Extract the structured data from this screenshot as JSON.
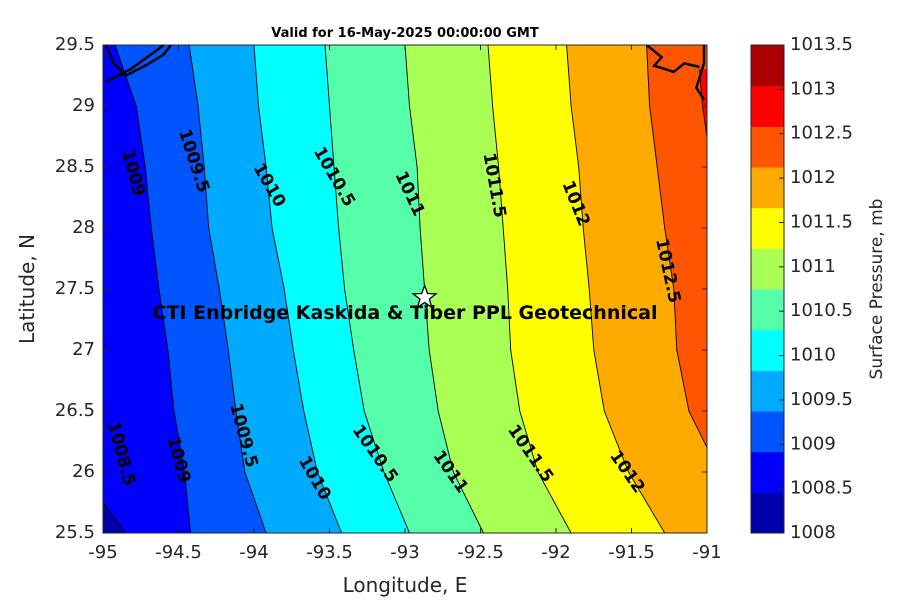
{
  "chart_data": {
    "type": "contour",
    "title": "Valid for 16-May-2025 00:00:00 GMT",
    "xlabel": "Longitude, E",
    "ylabel": "Latitude, N",
    "xlim": [
      -95,
      -91
    ],
    "ylim": [
      25.5,
      29.5
    ],
    "xticks": [
      "-95",
      "-94.5",
      "-94",
      "-93.5",
      "-93",
      "-92.5",
      "-92",
      "-91.5",
      "-91"
    ],
    "yticks": [
      "25.5",
      "26",
      "26.5",
      "27",
      "27.5",
      "28",
      "28.5",
      "29",
      "29.5"
    ],
    "colorbar": {
      "label": "Surface Pressure, mb",
      "levels": [
        1008,
        1008.5,
        1009,
        1009.5,
        1010,
        1010.5,
        1011,
        1011.5,
        1012,
        1012.5,
        1013,
        1013.5
      ],
      "tick_labels": [
        "1008",
        "1008.5",
        "1009",
        "1009.5",
        "1010",
        "1010.5",
        "1011",
        "1011.5",
        "1012",
        "1012.5",
        "1013",
        "1013.5"
      ],
      "colors": [
        "#0000aa",
        "#0000ff",
        "#0055ff",
        "#00aaff",
        "#00ffff",
        "#55ffaa",
        "#aaff55",
        "#ffff00",
        "#ffaa00",
        "#ff5500",
        "#ff0000",
        "#aa0000"
      ]
    },
    "contours": [
      {
        "level": 1008.5,
        "label": "1008.5",
        "points": [
          [
            -95,
            25.75
          ],
          [
            -94.85,
            25.5
          ]
        ]
      },
      {
        "level": 1009,
        "label": "1009",
        "points": [
          [
            -94.92,
            29.5
          ],
          [
            -94.78,
            29.0
          ],
          [
            -94.72,
            28.5
          ],
          [
            -94.68,
            28.0
          ],
          [
            -94.63,
            27.5
          ],
          [
            -94.57,
            27.0
          ],
          [
            -94.53,
            26.5
          ],
          [
            -94.46,
            26.0
          ],
          [
            -94.42,
            25.5
          ]
        ]
      },
      {
        "level": 1009.5,
        "label": "1009.5",
        "points": [
          [
            -94.43,
            29.5
          ],
          [
            -94.37,
            29.0
          ],
          [
            -94.33,
            28.5
          ],
          [
            -94.3,
            28.0
          ],
          [
            -94.23,
            27.5
          ],
          [
            -94.17,
            27.0
          ],
          [
            -94.12,
            26.5
          ],
          [
            -94.06,
            26.0
          ],
          [
            -93.92,
            25.5
          ]
        ]
      },
      {
        "level": 1010,
        "label": "1010",
        "points": [
          [
            -94.0,
            29.5
          ],
          [
            -93.97,
            29.0
          ],
          [
            -93.92,
            28.5
          ],
          [
            -93.88,
            28.0
          ],
          [
            -93.8,
            27.5
          ],
          [
            -93.74,
            27.0
          ],
          [
            -93.67,
            26.5
          ],
          [
            -93.58,
            26.0
          ],
          [
            -93.42,
            25.5
          ]
        ]
      },
      {
        "level": 1010.5,
        "label": "1010.5",
        "points": [
          [
            -93.53,
            29.5
          ],
          [
            -93.5,
            29.0
          ],
          [
            -93.47,
            28.5
          ],
          [
            -93.44,
            28.0
          ],
          [
            -93.4,
            27.5
          ],
          [
            -93.34,
            27.0
          ],
          [
            -93.27,
            26.5
          ],
          [
            -93.14,
            26.0
          ],
          [
            -92.97,
            25.5
          ]
        ]
      },
      {
        "level": 1011,
        "label": "1011",
        "points": [
          [
            -93.0,
            29.5
          ],
          [
            -92.97,
            29.0
          ],
          [
            -92.92,
            28.5
          ],
          [
            -92.9,
            28.0
          ],
          [
            -92.87,
            27.5
          ],
          [
            -92.84,
            27.0
          ],
          [
            -92.78,
            26.5
          ],
          [
            -92.68,
            26.0
          ],
          [
            -92.48,
            25.5
          ]
        ]
      },
      {
        "level": 1011.5,
        "label": "1011.5",
        "points": [
          [
            -92.45,
            29.5
          ],
          [
            -92.42,
            29.0
          ],
          [
            -92.38,
            28.5
          ],
          [
            -92.35,
            28.0
          ],
          [
            -92.32,
            27.5
          ],
          [
            -92.3,
            27.0
          ],
          [
            -92.24,
            26.5
          ],
          [
            -92.12,
            26.0
          ],
          [
            -91.9,
            25.5
          ]
        ]
      },
      {
        "level": 1012,
        "label": "1012",
        "points": [
          [
            -91.93,
            29.5
          ],
          [
            -91.9,
            29.0
          ],
          [
            -91.85,
            28.5
          ],
          [
            -91.82,
            28.0
          ],
          [
            -91.78,
            27.5
          ],
          [
            -91.75,
            27.0
          ],
          [
            -91.68,
            26.5
          ],
          [
            -91.52,
            26.0
          ],
          [
            -91.28,
            25.5
          ]
        ]
      },
      {
        "level": 1012.5,
        "label": "1012.5",
        "points": [
          [
            -91.4,
            29.5
          ],
          [
            -91.38,
            29.0
          ],
          [
            -91.33,
            28.5
          ],
          [
            -91.28,
            28.0
          ],
          [
            -91.22,
            27.5
          ],
          [
            -91.2,
            27.0
          ],
          [
            -91.12,
            26.5
          ],
          [
            -91.0,
            26.2
          ]
        ]
      },
      {
        "level": 1013,
        "label": "1013",
        "points": [
          [
            -91.05,
            29.3
          ],
          [
            -91.03,
            29.0
          ],
          [
            -91.0,
            28.75
          ]
        ]
      }
    ],
    "contour_labels": [
      {
        "text": "1008.5",
        "x": -94.88,
        "y": 26.15,
        "angle": 75
      },
      {
        "text": "1009",
        "x": -94.8,
        "y": 28.45,
        "angle": 75
      },
      {
        "text": "1009",
        "x": -94.5,
        "y": 26.1,
        "angle": 75
      },
      {
        "text": "1009.5",
        "x": -94.4,
        "y": 28.55,
        "angle": 72
      },
      {
        "text": "1009.5",
        "x": -94.07,
        "y": 26.3,
        "angle": 75
      },
      {
        "text": "1010",
        "x": -93.9,
        "y": 28.35,
        "angle": 60
      },
      {
        "text": "1010",
        "x": -93.6,
        "y": 25.95,
        "angle": 60
      },
      {
        "text": "1010.5",
        "x": -93.47,
        "y": 28.42,
        "angle": 60
      },
      {
        "text": "1010.5",
        "x": -93.2,
        "y": 26.15,
        "angle": 55
      },
      {
        "text": "1011",
        "x": -92.97,
        "y": 28.28,
        "angle": 65
      },
      {
        "text": "1011",
        "x": -92.7,
        "y": 26.0,
        "angle": 55
      },
      {
        "text": "1011.5",
        "x": -92.41,
        "y": 28.35,
        "angle": 80
      },
      {
        "text": "1011.5",
        "x": -92.17,
        "y": 26.15,
        "angle": 55
      },
      {
        "text": "1012",
        "x": -91.87,
        "y": 28.2,
        "angle": 68
      },
      {
        "text": "1012",
        "x": -91.53,
        "y": 26.0,
        "angle": 55
      },
      {
        "text": "1012.5",
        "x": -91.26,
        "y": 27.65,
        "angle": 78
      }
    ],
    "annotations": [
      {
        "text": "CTI Enbridge  Kaskida & Tiber PPL Geotechnical",
        "x": -93,
        "y": 27.3
      }
    ],
    "marker": {
      "symbol": "star",
      "x": -92.87,
      "y": 27.43
    },
    "coastline": [
      {
        "points": [
          [
            -94.98,
            29.5
          ],
          [
            -94.93,
            29.35
          ],
          [
            -94.85,
            29.25
          ],
          [
            -94.72,
            29.33
          ],
          [
            -94.6,
            29.42
          ],
          [
            -94.55,
            29.5
          ]
        ]
      },
      {
        "points": [
          [
            -94.98,
            29.2
          ],
          [
            -94.82,
            29.3
          ],
          [
            -94.64,
            29.46
          ],
          [
            -94.6,
            29.5
          ]
        ]
      },
      {
        "points": [
          [
            -91.4,
            29.5
          ],
          [
            -91.3,
            29.4
          ],
          [
            -91.35,
            29.33
          ],
          [
            -91.22,
            29.28
          ],
          [
            -91.15,
            29.35
          ],
          [
            -91.05,
            29.32
          ]
        ]
      },
      {
        "points": [
          [
            -91.02,
            29.5
          ],
          [
            -91.02,
            29.35
          ],
          [
            -91.07,
            29.15
          ],
          [
            -91.02,
            29.05
          ]
        ]
      }
    ]
  }
}
